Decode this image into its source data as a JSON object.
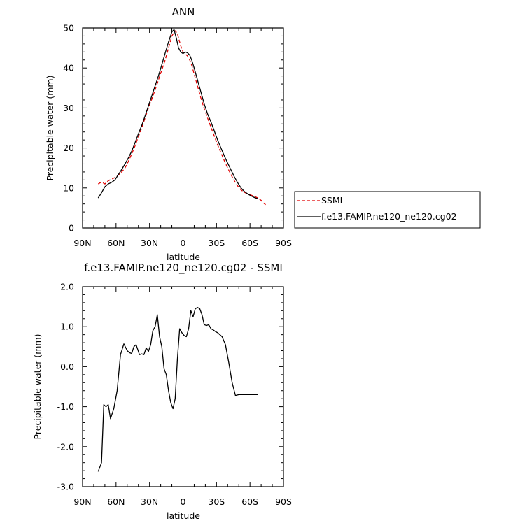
{
  "chart_data": [
    {
      "type": "line",
      "title": "ANN",
      "xlabel": "latitude",
      "ylabel": "Precipitable water (mm)",
      "xlim": [
        90,
        -90
      ],
      "ylim": [
        0,
        50
      ],
      "x_ticks": [
        90,
        60,
        30,
        0,
        -30,
        -60,
        -90
      ],
      "x_tick_labels": [
        "90N",
        "60N",
        "30N",
        "0",
        "30S",
        "60S",
        "90S"
      ],
      "y_ticks": [
        0,
        10,
        20,
        30,
        40,
        50
      ],
      "y_tick_labels": [
        "0",
        "10",
        "20",
        "30",
        "40",
        "50"
      ],
      "legend_position": "outside-right",
      "series": [
        {
          "name": "SSMI",
          "color": "#e00000",
          "dash": "dashed",
          "x": [
            76,
            73,
            70,
            67,
            64,
            61,
            58,
            55,
            52,
            49,
            46,
            43,
            40,
            37,
            34,
            31,
            28,
            25,
            22,
            19,
            16,
            13,
            10,
            7,
            5,
            4,
            2,
            0,
            -2,
            -4,
            -6,
            -8,
            -10,
            -13,
            -16,
            -19,
            -22,
            -25,
            -28,
            -31,
            -34,
            -37,
            -40,
            -43,
            -46,
            -49,
            -52,
            -55,
            -58,
            -61,
            -64,
            -67,
            -70,
            -72,
            -74
          ],
          "values": [
            11.0,
            11.5,
            11.0,
            11.8,
            12.2,
            12.6,
            13.2,
            14.0,
            15.0,
            16.6,
            18.5,
            20.5,
            22.8,
            25.0,
            27.5,
            30.0,
            32.2,
            34.5,
            37.0,
            39.5,
            42.0,
            45.0,
            48.0,
            49.3,
            48.6,
            47.5,
            45.5,
            44.0,
            43.5,
            43.0,
            42.0,
            40.5,
            38.5,
            35.5,
            32.5,
            29.8,
            27.5,
            25.2,
            23.0,
            20.8,
            18.8,
            16.8,
            15.0,
            13.3,
            11.8,
            10.5,
            9.5,
            8.9,
            8.5,
            8.2,
            7.9,
            7.5,
            6.9,
            6.3,
            5.8
          ]
        },
        {
          "name": "f.e13.FAMIP.ne120_ne120.cg02",
          "color": "#000000",
          "dash": "solid",
          "x": [
            76,
            73,
            70,
            67,
            64,
            61,
            58,
            55,
            52,
            49,
            46,
            43,
            40,
            37,
            34,
            31,
            28,
            25,
            22,
            19,
            16,
            13,
            10,
            8,
            6,
            4,
            2,
            0,
            -2,
            -4,
            -6,
            -8,
            -10,
            -13,
            -16,
            -19,
            -22,
            -25,
            -28,
            -31,
            -34,
            -37,
            -40,
            -43,
            -46,
            -49,
            -52,
            -55,
            -58,
            -61,
            -64,
            -67
          ],
          "values": [
            7.5,
            8.8,
            10.3,
            11.0,
            11.4,
            12.0,
            13.3,
            14.6,
            16.0,
            17.5,
            19.2,
            21.3,
            23.5,
            25.6,
            28.0,
            30.5,
            33.0,
            35.5,
            38.0,
            40.8,
            43.7,
            46.5,
            49.0,
            49.6,
            47.5,
            45.0,
            44.0,
            43.6,
            44.0,
            43.8,
            43.2,
            41.8,
            40.0,
            37.0,
            34.0,
            31.0,
            28.5,
            26.5,
            24.3,
            22.0,
            20.0,
            18.0,
            16.2,
            14.5,
            12.8,
            11.3,
            10.0,
            9.1,
            8.5,
            8.0,
            7.6,
            7.3
          ]
        }
      ]
    },
    {
      "type": "line",
      "title": "f.e13.FAMIP.ne120_ne120.cg02 - SSMI",
      "xlabel": "latitude",
      "ylabel": "Precipitable water (mm)",
      "xlim": [
        90,
        -90
      ],
      "ylim": [
        -3.0,
        2.0
      ],
      "x_ticks": [
        90,
        60,
        30,
        0,
        -30,
        -60,
        -90
      ],
      "x_tick_labels": [
        "90N",
        "60N",
        "30N",
        "0",
        "30S",
        "60S",
        "90S"
      ],
      "y_ticks": [
        -3.0,
        -2.0,
        -1.0,
        0.0,
        1.0,
        2.0
      ],
      "y_tick_labels": [
        "-3.0",
        "-2.0",
        "-1.0",
        "0.0",
        "1.0",
        "2.0"
      ],
      "series": [
        {
          "color": "#000000",
          "dash": "solid",
          "x": [
            76,
            73,
            71,
            69,
            67,
            65,
            62,
            59,
            56,
            53,
            50,
            48,
            46,
            44,
            42,
            39,
            37,
            35,
            33,
            31,
            29,
            27,
            25,
            23,
            21,
            19,
            17,
            15,
            13,
            11,
            9,
            7,
            5,
            3,
            1,
            -1,
            -3,
            -5,
            -7,
            -9,
            -11,
            -13,
            -15,
            -17,
            -19,
            -21,
            -23,
            -25,
            -27,
            -29,
            -31,
            -33,
            -35,
            -38,
            -41,
            -44,
            -47,
            -50,
            -53,
            -55,
            -57,
            -60,
            -62,
            -65,
            -67
          ],
          "values": [
            -2.62,
            -2.4,
            -0.95,
            -1.0,
            -0.95,
            -1.3,
            -1.05,
            -0.6,
            0.3,
            0.57,
            0.4,
            0.35,
            0.33,
            0.5,
            0.55,
            0.3,
            0.32,
            0.3,
            0.47,
            0.38,
            0.55,
            0.9,
            1.0,
            1.3,
            0.75,
            0.5,
            -0.05,
            -0.2,
            -0.6,
            -0.9,
            -1.05,
            -0.8,
            0.2,
            0.95,
            0.85,
            0.78,
            0.75,
            0.95,
            1.4,
            1.25,
            1.45,
            1.48,
            1.45,
            1.3,
            1.05,
            1.03,
            1.05,
            0.95,
            0.92,
            0.88,
            0.85,
            0.8,
            0.75,
            0.55,
            0.1,
            -0.4,
            -0.72,
            -0.7,
            -0.7,
            -0.7,
            -0.7,
            -0.7,
            -0.7,
            -0.7,
            -0.7
          ]
        }
      ]
    }
  ]
}
